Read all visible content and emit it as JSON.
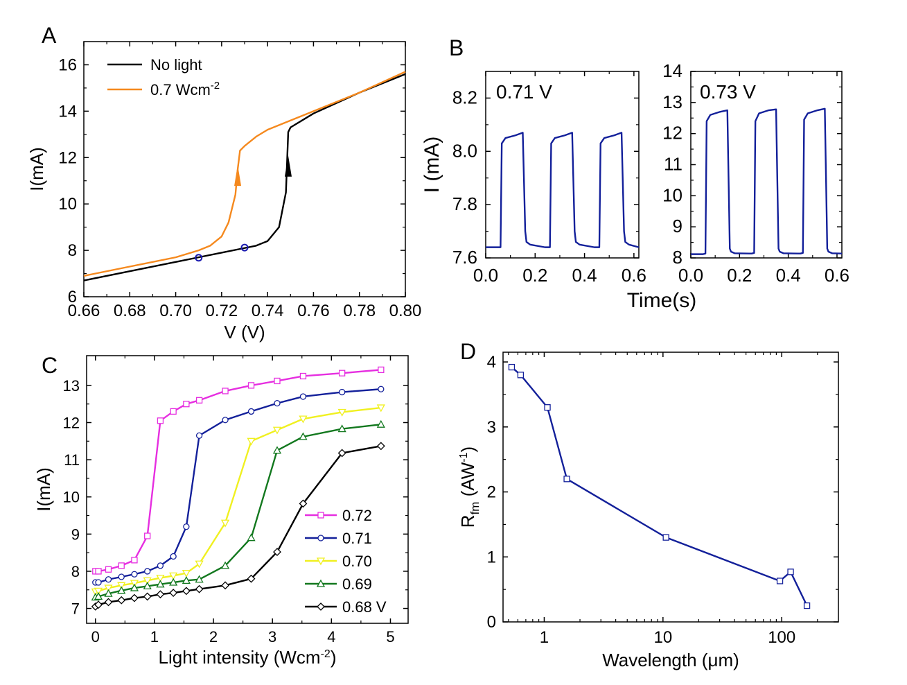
{
  "panels": {
    "A": {
      "letter": "A"
    },
    "B": {
      "letter": "B"
    },
    "C": {
      "letter": "C"
    },
    "D": {
      "letter": "D"
    }
  },
  "chart_data": [
    {
      "id": "A",
      "type": "line",
      "xlabel": "V (V)",
      "ylabel": "I(mA)",
      "xlim": [
        0.66,
        0.8
      ],
      "ylim": [
        6,
        17
      ],
      "xticks": [
        "0.66",
        "0.68",
        "0.70",
        "0.72",
        "0.74",
        "0.76",
        "0.78",
        "0.80"
      ],
      "xtick_values": [
        0.66,
        0.68,
        0.7,
        0.72,
        0.74,
        0.76,
        0.78,
        0.8
      ],
      "yticks": [
        "6",
        "8",
        "10",
        "12",
        "14",
        "16"
      ],
      "ytick_values": [
        6,
        8,
        10,
        12,
        14,
        16
      ],
      "legend_position": "top-left",
      "series": [
        {
          "name": "No light",
          "color": "#000000",
          "x": [
            0.66,
            0.68,
            0.7,
            0.71,
            0.72,
            0.73,
            0.735,
            0.74,
            0.745,
            0.748,
            0.749,
            0.75,
            0.76,
            0.78,
            0.8
          ],
          "y": [
            6.7,
            7.1,
            7.5,
            7.7,
            7.9,
            8.1,
            8.2,
            8.4,
            9.0,
            10.5,
            13.1,
            13.3,
            13.9,
            14.8,
            15.6
          ]
        },
        {
          "name_main": "0.7 Wcm",
          "name_sup": "-2",
          "color": "#f5891e",
          "x": [
            0.66,
            0.68,
            0.7,
            0.71,
            0.715,
            0.72,
            0.723,
            0.726,
            0.727,
            0.728,
            0.73,
            0.735,
            0.74,
            0.75,
            0.76,
            0.78,
            0.8
          ],
          "y": [
            6.9,
            7.3,
            7.7,
            8.0,
            8.2,
            8.6,
            9.2,
            10.4,
            11.5,
            12.3,
            12.5,
            12.9,
            13.2,
            13.6,
            14.0,
            14.8,
            15.7
          ]
        }
      ],
      "markers": [
        {
          "x": 0.71,
          "y": 7.68,
          "color": "#1a1ab0"
        },
        {
          "x": 0.73,
          "y": 8.12,
          "color": "#1a1ab0"
        }
      ],
      "arrows": [
        {
          "x": 0.727,
          "y_from": 10.9,
          "y_to": 11.5,
          "color": "#f5891e"
        },
        {
          "x": 0.749,
          "y_from": 11.3,
          "y_to": 11.9,
          "color": "#000000"
        }
      ]
    },
    {
      "id": "B1",
      "type": "line",
      "annotation": "0.71 V",
      "ylabel": "I (mA)",
      "xlim": [
        0,
        0.62
      ],
      "ylim": [
        7.6,
        8.3
      ],
      "xticks": [
        "0.0",
        "0.2",
        "0.4",
        "0.6"
      ],
      "xtick_values": [
        0,
        0.2,
        0.4,
        0.6
      ],
      "yticks": [
        "7.6",
        "7.8",
        "8.0",
        "8.2"
      ],
      "ytick_values": [
        7.6,
        7.8,
        8.0,
        8.2
      ],
      "series": [
        {
          "color": "#13209a",
          "x": [
            0,
            0.03,
            0.05,
            0.06,
            0.065,
            0.08,
            0.12,
            0.15,
            0.16,
            0.165,
            0.18,
            0.24,
            0.25,
            0.26,
            0.265,
            0.28,
            0.32,
            0.35,
            0.36,
            0.365,
            0.38,
            0.44,
            0.45,
            0.46,
            0.465,
            0.48,
            0.52,
            0.55,
            0.56,
            0.565,
            0.58,
            0.62
          ],
          "y": [
            7.64,
            7.64,
            7.64,
            7.64,
            8.03,
            8.05,
            8.06,
            8.07,
            7.7,
            7.66,
            7.65,
            7.64,
            7.64,
            7.64,
            8.03,
            8.05,
            8.06,
            8.07,
            7.7,
            7.66,
            7.65,
            7.64,
            7.64,
            7.64,
            8.03,
            8.05,
            8.06,
            8.07,
            7.7,
            7.66,
            7.65,
            7.64
          ]
        }
      ]
    },
    {
      "id": "B2",
      "type": "line",
      "annotation": "0.73 V",
      "xlabel": "Time(s)",
      "xlim": [
        0,
        0.62
      ],
      "ylim": [
        8,
        14
      ],
      "xticks": [
        "0.0",
        "0.2",
        "0.4",
        "0.6"
      ],
      "xtick_values": [
        0,
        0.2,
        0.4,
        0.6
      ],
      "yticks": [
        "8",
        "9",
        "10",
        "11",
        "12",
        "13",
        "14"
      ],
      "ytick_values": [
        8,
        9,
        10,
        11,
        12,
        13,
        14
      ],
      "series": [
        {
          "color": "#13209a",
          "x": [
            0,
            0.03,
            0.05,
            0.06,
            0.065,
            0.08,
            0.12,
            0.15,
            0.16,
            0.165,
            0.18,
            0.24,
            0.25,
            0.26,
            0.265,
            0.28,
            0.32,
            0.35,
            0.36,
            0.365,
            0.38,
            0.44,
            0.45,
            0.46,
            0.465,
            0.48,
            0.52,
            0.55,
            0.56,
            0.565,
            0.58,
            0.62
          ],
          "y": [
            8.12,
            8.12,
            8.12,
            8.14,
            12.4,
            12.6,
            12.7,
            12.75,
            8.3,
            8.2,
            8.15,
            8.14,
            8.14,
            8.16,
            12.4,
            12.65,
            12.75,
            12.78,
            8.3,
            8.2,
            8.15,
            8.14,
            8.14,
            8.16,
            12.45,
            12.65,
            12.75,
            12.8,
            8.3,
            8.2,
            8.15,
            8.14
          ]
        }
      ]
    },
    {
      "id": "C",
      "type": "line",
      "xlabel_main": "Light intensity (Wcm",
      "xlabel_sup": "-2",
      "xlabel_end": ")",
      "ylabel": "I(mA)",
      "xlim": [
        -0.15,
        5.3
      ],
      "ylim": [
        6.6,
        13.8
      ],
      "xticks": [
        "0",
        "1",
        "2",
        "3",
        "4",
        "5"
      ],
      "xtick_values": [
        0,
        1,
        2,
        3,
        4,
        5
      ],
      "yticks": [
        "7",
        "8",
        "9",
        "10",
        "11",
        "12",
        "13"
      ],
      "ytick_values": [
        7,
        8,
        9,
        10,
        11,
        12,
        13
      ],
      "legend_position": "bottom-right",
      "x": [
        0,
        0.05,
        0.22,
        0.44,
        0.66,
        0.88,
        1.1,
        1.32,
        1.54,
        1.76,
        2.2,
        2.64,
        3.08,
        3.52,
        4.18,
        4.84
      ],
      "series": [
        {
          "name": "0.72",
          "color": "#e62ee0",
          "marker": "square",
          "y": [
            8.0,
            8.0,
            8.05,
            8.15,
            8.3,
            8.95,
            12.05,
            12.3,
            12.5,
            12.6,
            12.85,
            13.0,
            13.12,
            13.25,
            13.33,
            13.42
          ]
        },
        {
          "name": "0.71",
          "color": "#13209a",
          "marker": "circle",
          "y": [
            7.7,
            7.7,
            7.78,
            7.85,
            7.92,
            8.0,
            8.15,
            8.4,
            9.2,
            11.65,
            12.07,
            12.3,
            12.52,
            12.7,
            12.82,
            12.9
          ]
        },
        {
          "name": "0.70",
          "color": "#f0f020",
          "marker": "triangle-down",
          "y": [
            7.45,
            7.47,
            7.55,
            7.62,
            7.68,
            7.75,
            7.82,
            7.88,
            7.95,
            8.2,
            9.3,
            11.5,
            11.8,
            12.1,
            12.28,
            12.4
          ]
        },
        {
          "name": "0.69",
          "color": "#12781e",
          "marker": "triangle-up",
          "y": [
            7.3,
            7.32,
            7.4,
            7.48,
            7.55,
            7.6,
            7.65,
            7.7,
            7.75,
            7.78,
            8.15,
            8.9,
            11.25,
            11.62,
            11.83,
            11.95
          ]
        },
        {
          "name": "0.68 V",
          "color": "#000000",
          "marker": "diamond",
          "y": [
            7.05,
            7.1,
            7.17,
            7.22,
            7.28,
            7.32,
            7.38,
            7.42,
            7.47,
            7.52,
            7.62,
            7.8,
            8.52,
            9.82,
            11.18,
            11.37
          ]
        }
      ]
    },
    {
      "id": "D",
      "type": "line",
      "xscale": "log",
      "xlabel_main": "Wavelength (",
      "xlabel_mu": "μ",
      "xlabel_end": "m)",
      "ylabel_main": "R",
      "ylabel_sub": "fm",
      "ylabel_mid": " (AW",
      "ylabel_sup": "-1",
      "ylabel_end": ")",
      "xlim": [
        0.45,
        300
      ],
      "ylim": [
        0,
        4.15
      ],
      "xticks": [
        "1",
        "10",
        "100"
      ],
      "xtick_values": [
        1,
        10,
        100
      ],
      "yticks": [
        "0",
        "1",
        "2",
        "3",
        "4"
      ],
      "ytick_values": [
        0,
        1,
        2,
        3,
        4
      ],
      "series": [
        {
          "color": "#13209a",
          "marker": "square",
          "x": [
            0.532,
            0.633,
            1.064,
            1.55,
            10.6,
            96.5,
            118.8,
            163
          ],
          "y": [
            3.92,
            3.8,
            3.3,
            2.2,
            1.3,
            0.63,
            0.77,
            0.25
          ]
        }
      ]
    }
  ]
}
